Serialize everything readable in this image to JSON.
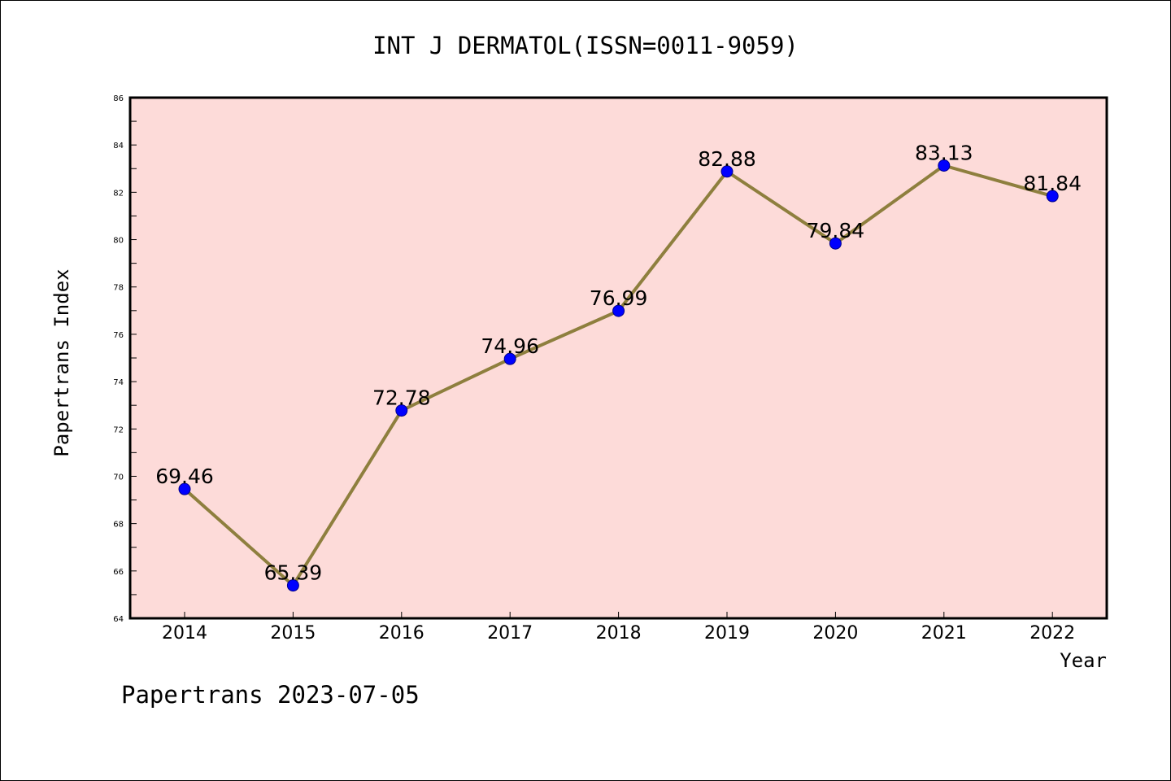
{
  "colors": {
    "plot_background": "#fddbd9",
    "line": "#8e7f3e",
    "marker_fill": "#0000ff",
    "marker_edge": "#00008b",
    "axis": "#000000"
  },
  "chart_data": {
    "type": "line",
    "title": "INT J DERMATOL(ISSN=0011-9059)",
    "xlabel": "Year",
    "ylabel": "Papertrans Index",
    "categories": [
      "2014",
      "2015",
      "2016",
      "2017",
      "2018",
      "2019",
      "2020",
      "2021",
      "2022"
    ],
    "series": [
      {
        "values": [
          69.46,
          65.39,
          72.78,
          74.96,
          76.99,
          82.88,
          79.84,
          83.13,
          81.84
        ],
        "labels": [
          "69.46",
          "65.39",
          "72.78",
          "74.96",
          "76.99",
          "82.88",
          "79.84",
          "83.13",
          "81.84"
        ]
      }
    ],
    "ylim": [
      64,
      86
    ],
    "yticks": [
      64,
      66,
      68,
      70,
      72,
      74,
      76,
      78,
      80,
      82,
      84,
      86
    ],
    "ytick_labels": [
      "64",
      "66",
      "68",
      "70",
      "72",
      "74",
      "76",
      "78",
      "80",
      "82",
      "84",
      "86"
    ],
    "grid": false,
    "legend": "none"
  },
  "footer": {
    "text": "Papertrans 2023-07-05"
  }
}
